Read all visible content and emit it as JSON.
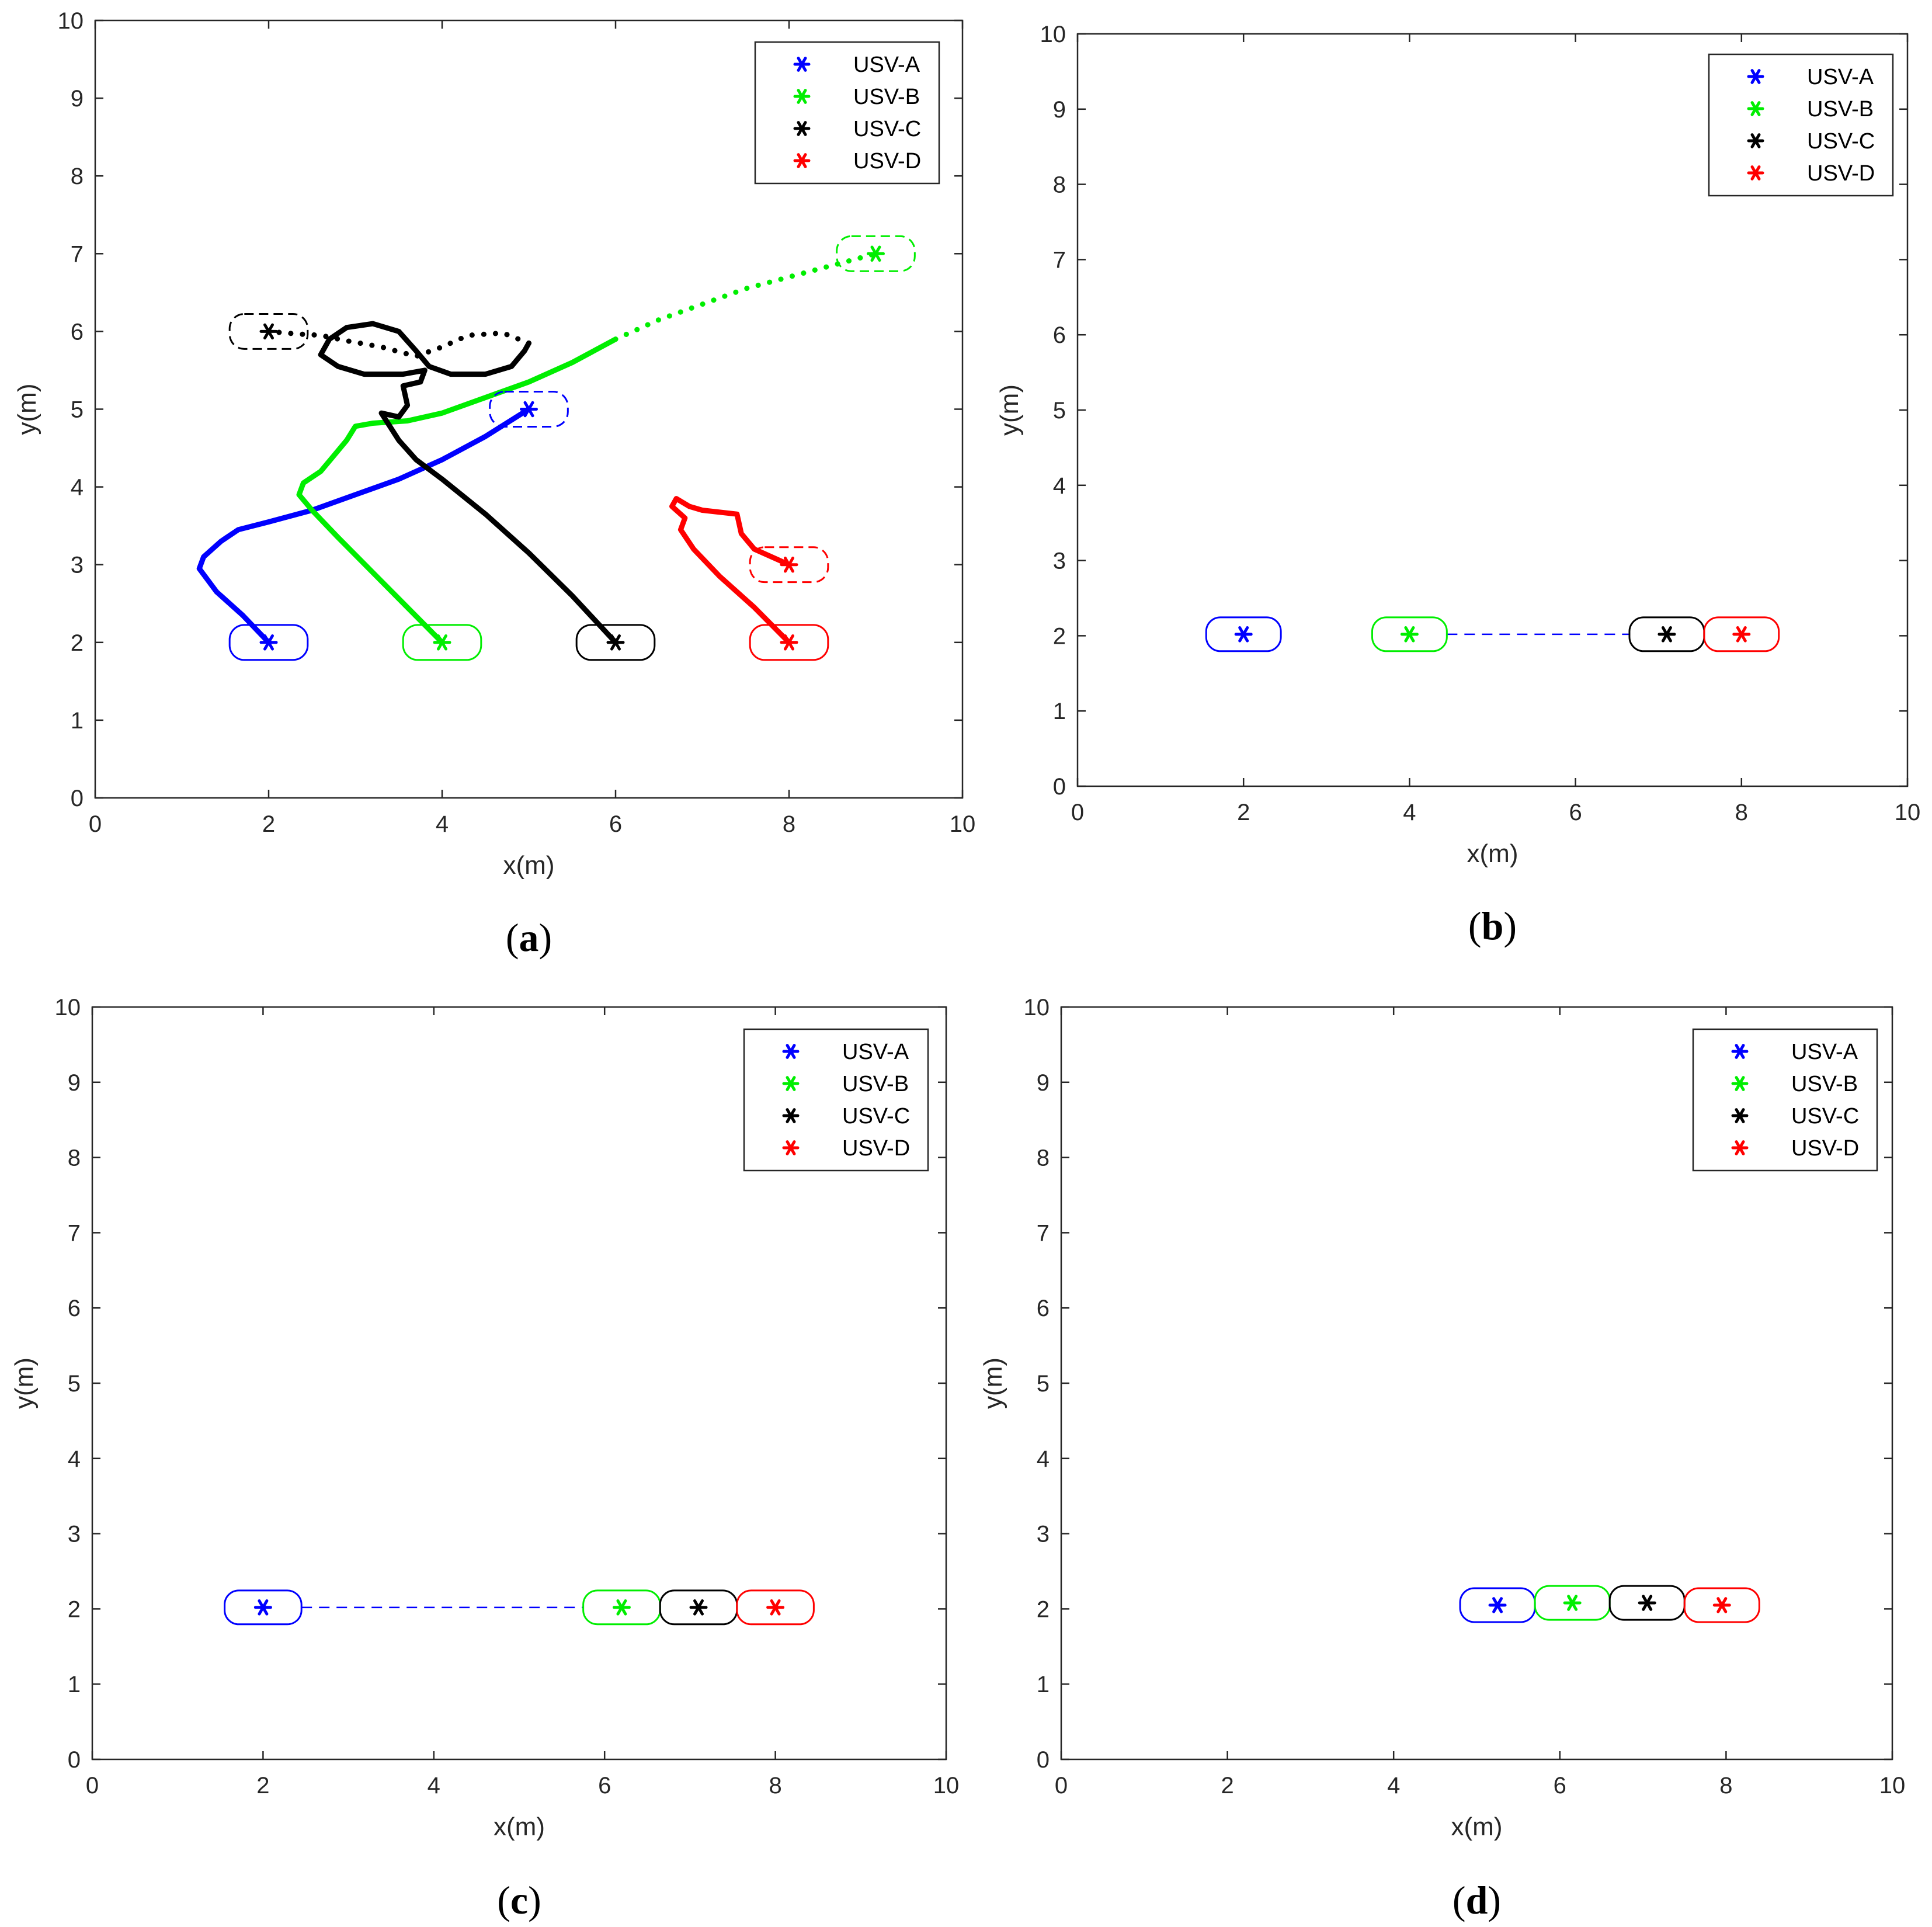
{
  "legend": [
    {
      "label": "USV-A",
      "color": "#0000ff"
    },
    {
      "label": "USV-B",
      "color": "#00ee00"
    },
    {
      "label": "USV-C",
      "color": "#000000"
    },
    {
      "label": "USV-D",
      "color": "#ff0000"
    }
  ],
  "chart_data": [
    {
      "type": "line",
      "caption_letter": "a",
      "xlabel": "x(m)",
      "ylabel": "y(m)",
      "xlim": [
        0,
        10
      ],
      "ylim": [
        0,
        10
      ],
      "xticks": [
        0,
        2,
        4,
        6,
        8,
        10
      ],
      "yticks": [
        0,
        1,
        2,
        3,
        4,
        5,
        6,
        7,
        8,
        9,
        10
      ],
      "legend_position": "top-right",
      "grid": false,
      "series": [
        {
          "name": "USV-A",
          "color": "#0000ff",
          "style": "solid",
          "points": [
            [
              2.0,
              2.0
            ],
            [
              1.7,
              2.35
            ],
            [
              1.4,
              2.65
            ],
            [
              1.2,
              2.95
            ],
            [
              1.25,
              3.1
            ],
            [
              1.45,
              3.3
            ],
            [
              1.65,
              3.45
            ],
            [
              2.0,
              3.55
            ],
            [
              2.5,
              3.7
            ],
            [
              3.0,
              3.9
            ],
            [
              3.5,
              4.1
            ],
            [
              4.0,
              4.35
            ],
            [
              4.5,
              4.65
            ],
            [
              5.0,
              5.0
            ]
          ]
        },
        {
          "name": "USV-B",
          "color": "#00ee00",
          "style": "solid",
          "points": [
            [
              4.0,
              2.0
            ],
            [
              3.6,
              2.45
            ],
            [
              3.2,
              2.9
            ],
            [
              2.8,
              3.35
            ],
            [
              2.5,
              3.7
            ],
            [
              2.35,
              3.9
            ],
            [
              2.4,
              4.05
            ],
            [
              2.6,
              4.2
            ],
            [
              2.75,
              4.4
            ],
            [
              2.9,
              4.6
            ],
            [
              3.0,
              4.78
            ],
            [
              3.2,
              4.82
            ],
            [
              3.6,
              4.85
            ],
            [
              4.0,
              4.95
            ],
            [
              4.5,
              5.15
            ],
            [
              5.0,
              5.35
            ],
            [
              5.5,
              5.6
            ],
            [
              6.0,
              5.9
            ]
          ]
        },
        {
          "name": "USV-B",
          "color": "#00ee00",
          "style": "dotted",
          "points": [
            [
              6.0,
              5.9
            ],
            [
              6.5,
              6.15
            ],
            [
              7.0,
              6.35
            ],
            [
              7.5,
              6.55
            ],
            [
              8.0,
              6.7
            ],
            [
              8.5,
              6.85
            ],
            [
              9.0,
              7.0
            ]
          ]
        },
        {
          "name": "USV-C",
          "color": "#000000",
          "style": "solid",
          "points": [
            [
              6.0,
              2.0
            ],
            [
              5.5,
              2.6
            ],
            [
              5.0,
              3.15
            ],
            [
              4.5,
              3.65
            ],
            [
              4.0,
              4.1
            ],
            [
              3.7,
              4.35
            ],
            [
              3.5,
              4.6
            ],
            [
              3.3,
              4.95
            ],
            [
              3.5,
              4.9
            ],
            [
              3.6,
              5.05
            ],
            [
              3.55,
              5.3
            ],
            [
              3.75,
              5.35
            ],
            [
              3.8,
              5.5
            ],
            [
              3.55,
              5.45
            ],
            [
              3.1,
              5.45
            ],
            [
              2.8,
              5.55
            ],
            [
              2.6,
              5.7
            ],
            [
              2.7,
              5.9
            ],
            [
              2.9,
              6.05
            ],
            [
              3.2,
              6.1
            ],
            [
              3.5,
              6.0
            ],
            [
              3.7,
              5.75
            ],
            [
              3.85,
              5.55
            ],
            [
              4.1,
              5.45
            ],
            [
              4.5,
              5.45
            ],
            [
              4.8,
              5.55
            ],
            [
              4.95,
              5.75
            ],
            [
              5.0,
              5.85
            ]
          ]
        },
        {
          "name": "USV-C",
          "color": "#000000",
          "style": "dotted",
          "points": [
            [
              5.0,
              5.85
            ],
            [
              4.7,
              5.98
            ],
            [
              4.3,
              5.95
            ],
            [
              4.0,
              5.8
            ],
            [
              3.7,
              5.68
            ],
            [
              3.3,
              5.8
            ],
            [
              2.9,
              5.88
            ],
            [
              2.6,
              5.95
            ],
            [
              2.3,
              5.97
            ],
            [
              2.0,
              6.0
            ]
          ]
        },
        {
          "name": "USV-D",
          "color": "#ff0000",
          "style": "solid",
          "points": [
            [
              8.0,
              2.0
            ],
            [
              7.6,
              2.45
            ],
            [
              7.2,
              2.85
            ],
            [
              6.9,
              3.2
            ],
            [
              6.75,
              3.45
            ],
            [
              6.8,
              3.6
            ],
            [
              6.65,
              3.75
            ],
            [
              6.7,
              3.85
            ],
            [
              6.85,
              3.75
            ],
            [
              7.0,
              3.7
            ],
            [
              7.4,
              3.65
            ],
            [
              7.45,
              3.4
            ],
            [
              7.6,
              3.2
            ],
            [
              8.0,
              3.0
            ]
          ]
        }
      ],
      "boats": [
        {
          "x": 2,
          "y": 2,
          "color": "#0000ff",
          "style": "solid"
        },
        {
          "x": 4,
          "y": 2,
          "color": "#00ee00",
          "style": "solid"
        },
        {
          "x": 6,
          "y": 2,
          "color": "#000000",
          "style": "solid"
        },
        {
          "x": 8,
          "y": 2,
          "color": "#ff0000",
          "style": "solid"
        },
        {
          "x": 5,
          "y": 5,
          "color": "#0000ff",
          "style": "dashed"
        },
        {
          "x": 9,
          "y": 7,
          "color": "#00ee00",
          "style": "dashed"
        },
        {
          "x": 2,
          "y": 6,
          "color": "#000000",
          "style": "dashed"
        },
        {
          "x": 8,
          "y": 3,
          "color": "#ff0000",
          "style": "dashed"
        }
      ],
      "links": []
    },
    {
      "type": "line",
      "caption_letter": "b",
      "xlabel": "x(m)",
      "ylabel": "y(m)",
      "xlim": [
        0,
        10
      ],
      "ylim": [
        0,
        10
      ],
      "xticks": [
        0,
        2,
        4,
        6,
        8,
        10
      ],
      "yticks": [
        0,
        1,
        2,
        3,
        4,
        5,
        6,
        7,
        8,
        9,
        10
      ],
      "legend_position": "top-right",
      "grid": false,
      "series": [],
      "boats": [
        {
          "x": 2,
          "y": 2.02,
          "color": "#0000ff",
          "style": "solid"
        },
        {
          "x": 4,
          "y": 2.02,
          "color": "#00ee00",
          "style": "solid"
        },
        {
          "x": 7.1,
          "y": 2.02,
          "color": "#000000",
          "style": "solid"
        },
        {
          "x": 8,
          "y": 2.02,
          "color": "#ff0000",
          "style": "solid"
        }
      ],
      "links": [
        {
          "x1": 4.45,
          "y1": 2.02,
          "x2": 6.65,
          "y2": 2.02,
          "color": "#0000ff"
        }
      ]
    },
    {
      "type": "line",
      "caption_letter": "c",
      "xlabel": "x(m)",
      "ylabel": "y(m)",
      "xlim": [
        0,
        10
      ],
      "ylim": [
        0,
        10
      ],
      "xticks": [
        0,
        2,
        4,
        6,
        8,
        10
      ],
      "yticks": [
        0,
        1,
        2,
        3,
        4,
        5,
        6,
        7,
        8,
        9,
        10
      ],
      "legend_position": "top-right",
      "grid": false,
      "series": [],
      "boats": [
        {
          "x": 2,
          "y": 2.02,
          "color": "#0000ff",
          "style": "solid"
        },
        {
          "x": 6.2,
          "y": 2.02,
          "color": "#00ee00",
          "style": "solid"
        },
        {
          "x": 7.1,
          "y": 2.02,
          "color": "#000000",
          "style": "solid"
        },
        {
          "x": 8,
          "y": 2.02,
          "color": "#ff0000",
          "style": "solid"
        }
      ],
      "links": [
        {
          "x1": 2.45,
          "y1": 2.02,
          "x2": 5.75,
          "y2": 2.02,
          "color": "#0000ff"
        }
      ]
    },
    {
      "type": "line",
      "caption_letter": "d",
      "xlabel": "x(m)",
      "ylabel": "y(m)",
      "xlim": [
        0,
        10
      ],
      "ylim": [
        0,
        10
      ],
      "xticks": [
        0,
        2,
        4,
        6,
        8,
        10
      ],
      "yticks": [
        0,
        1,
        2,
        3,
        4,
        5,
        6,
        7,
        8,
        9,
        10
      ],
      "legend_position": "top-right",
      "grid": false,
      "series": [],
      "boats": [
        {
          "x": 5.25,
          "y": 2.05,
          "color": "#0000ff",
          "style": "solid"
        },
        {
          "x": 6.15,
          "y": 2.08,
          "color": "#00ee00",
          "style": "solid"
        },
        {
          "x": 7.05,
          "y": 2.08,
          "color": "#000000",
          "style": "solid"
        },
        {
          "x": 7.95,
          "y": 2.05,
          "color": "#ff0000",
          "style": "solid"
        }
      ],
      "links": []
    }
  ]
}
